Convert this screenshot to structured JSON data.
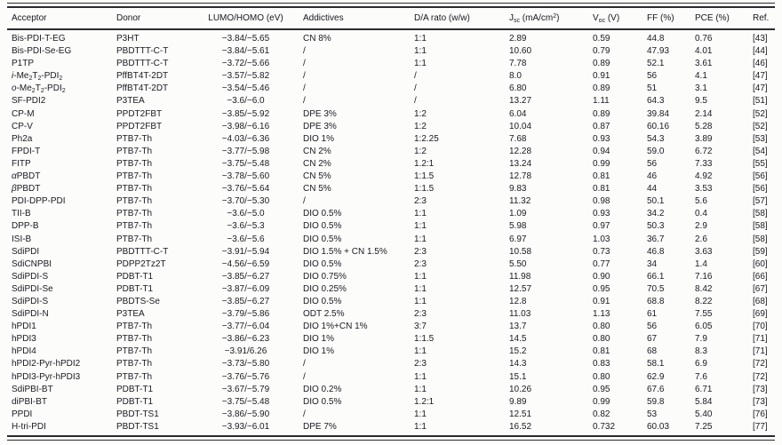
{
  "table": {
    "header": [
      "Acceptor",
      "Donor",
      "LUMO/HOMO (eV)",
      "Addictives",
      "D/A rato (w/w)",
      "J~sc~ (mA/cm^2^)",
      "V~oc~ (V)",
      "FF (%)",
      "PCE (%)",
      "Ref."
    ],
    "rows": [
      [
        "Bis-PDI-T-EG",
        "P3HT",
        "−3.84/−5.65",
        "CN 8%",
        "1:1",
        "2.89",
        "0.59",
        "44.8",
        "0.76",
        "[43]"
      ],
      [
        "Bis-PDI-Se-EG",
        "PBDTTT-C-T",
        "−3.84/−5.61",
        "/",
        "1:1",
        "10.60",
        "0.79",
        "47.93",
        "4.01",
        "[44]"
      ],
      [
        "P1TP",
        "PBDTTT-C-T",
        "−3.72/−5.66",
        "/",
        "1:1",
        "7.78",
        "0.89",
        "52.1",
        "3.61",
        "[46]"
      ],
      [
        "*i*-Me~2~T~2~-PDI~2~",
        "PffBT4T-2DT",
        "−3.57/−5.82",
        "/",
        "/",
        "8.0",
        "0.91",
        "56",
        "4.1",
        "[47]"
      ],
      [
        "*o*-Me~2~T~2~-PDI~2~",
        "PffBT4T-2DT",
        "−3.54/−5.46",
        "/",
        "/",
        "6.80",
        "0.89",
        "51",
        "3.1",
        "[47]"
      ],
      [
        "SF-PDI2",
        "P3TEA",
        "−3.6/−6.0",
        "/",
        "/",
        "13.27",
        "1.11",
        "64.3",
        "9.5",
        "[51]"
      ],
      [
        "CP-M",
        "PPDT2FBT",
        "−3.85/−5.92",
        "DPE 3%",
        "1:2",
        "6.04",
        "0.89",
        "39.84",
        "2.14",
        "[52]"
      ],
      [
        "CP-V",
        "PPDT2FBT",
        "−3.98/−6.16",
        "DPE 3%",
        "1:2",
        "10.04",
        "0.87",
        "60.16",
        "5.28",
        "[52]"
      ],
      [
        "Ph2a",
        "PTB7-Th",
        "−4.03/−6.36",
        "DIO 1%",
        "1:2.25",
        "7.68",
        "0.93",
        "54.3",
        "3.89",
        "[53]"
      ],
      [
        "FPDI-T",
        "PTB7-Th",
        "−3.77/−5.98",
        "CN 2%",
        "1:2",
        "12.28",
        "0.94",
        "59.0",
        "6.72",
        "[54]"
      ],
      [
        "FITP",
        "PTB7-Th",
        "−3.75/−5.48",
        "CN 2%",
        "1.2:1",
        "13.24",
        "0.99",
        "56",
        "7.33",
        "[55]"
      ],
      [
        "*α*PBDT",
        "PTB7-Th",
        "−3.78/−5.60",
        "CN 5%",
        "1:1.5",
        "12.78",
        "0.81",
        "46",
        "4.92",
        "[56]"
      ],
      [
        "*β*PBDT",
        "PTB7-Th",
        "−3.76/−5.64",
        "CN 5%",
        "1:1.5",
        "9.83",
        "0.81",
        "44",
        "3.53",
        "[56]"
      ],
      [
        "PDI-DPP-PDI",
        "PTB7-Th",
        "−3.70/−5.30",
        "/",
        "2:3",
        "11.32",
        "0.98",
        "50.1",
        "5.6",
        "[57]"
      ],
      [
        "TII-B",
        "PTB7-Th",
        "−3.6/−5.0",
        "DIO 0.5%",
        "1:1",
        "1.09",
        "0.93",
        "34.2",
        "0.4",
        "[58]"
      ],
      [
        "DPP-B",
        "PTB7-Th",
        "−3.6/−5.3",
        "DIO 0.5%",
        "1:1",
        "5.98",
        "0.97",
        "50.3",
        "2.9",
        "[58]"
      ],
      [
        "ISI-B",
        "PTB7-Th",
        "−3.6/−5.6",
        "DIO 0.5%",
        "1:1",
        "6.97",
        "1.03",
        "36.7",
        "2.6",
        "[58]"
      ],
      [
        "SdiPDI",
        "PBDTTT-C-T",
        "−3.91/−5.94",
        "DIO 1.5% + CN 1.5%",
        "2:3",
        "10.58",
        "0.73",
        "46.8",
        "3.63",
        "[59]"
      ],
      [
        "SdiCNPBI",
        "PDPP2Tz2T",
        "−4.56/−6.59",
        "DIO 0.5%",
        "2:3",
        "5.50",
        "0.77",
        "34",
        "1.4",
        "[60]"
      ],
      [
        "SdiPDI-S",
        "PDBT-T1",
        "−3.85/−6.27",
        "DIO 0.75%",
        "1:1",
        "11.98",
        "0.90",
        "66.1",
        "7.16",
        "[66]"
      ],
      [
        "SdiPDI-Se",
        "PDBT-T1",
        "−3.87/−6.09",
        "DIO 0.25%",
        "1:1",
        "12.57",
        "0.95",
        "70.5",
        "8.42",
        "[67]"
      ],
      [
        "SdiPDI-S",
        "PBDTS-Se",
        "−3.85/−6.27",
        "DIO 0.5%",
        "1:1",
        "12.8",
        "0.91",
        "68.8",
        "8.22",
        "[68]"
      ],
      [
        "SdiPDI-N",
        "P3TEA",
        "−3.79/−5.86",
        "ODT 2.5%",
        "2:3",
        "11.03",
        "1.13",
        "61",
        "7.55",
        "[69]"
      ],
      [
        "hPDI1",
        "PTB7-Th",
        "−3.77/−6.04",
        "DIO 1%+CN 1%",
        "3:7",
        "13.7",
        "0.80",
        "56",
        "6.05",
        "[70]"
      ],
      [
        "hPDI3",
        "PTB7-Th",
        "−3.86/−6.23",
        "DIO 1%",
        "1:1.5",
        "14.5",
        "0.80",
        "67",
        "7.9",
        "[71]"
      ],
      [
        "hPDI4",
        "PTB7-Th",
        "−3.91/6.26",
        "DIO 1%",
        "1:1",
        "15.2",
        "0.81",
        "68",
        "8.3",
        "[71]"
      ],
      [
        "hPDI2-Pyr-hPDI2",
        "PTB7-Th",
        "−3.73/−5.80",
        "/",
        "2:3",
        "14.3",
        "0.83",
        "58.1",
        "6.9",
        "[72]"
      ],
      [
        "hPDI3-Pyr-hPDI3",
        "PTB7-Th",
        "−3.76/−5.76",
        "/",
        "1:1",
        "15.1",
        "0.80",
        "62.9",
        "7.6",
        "[72]"
      ],
      [
        "SdiPBI-BT",
        "PDBT-T1",
        "−3.67/−5.79",
        "DIO 0.2%",
        "1:1",
        "10.26",
        "0.95",
        "67.6",
        "6.71",
        "[73]"
      ],
      [
        "diPBI-BT",
        "PDBT-T1",
        "−3.75/−5.48",
        "DIO 0.5%",
        "1.2:1",
        "9.89",
        "0.99",
        "59.8",
        "5.84",
        "[73]"
      ],
      [
        "PPDI",
        "PBDT-TS1",
        "−3.86/−5.90",
        "/",
        "1:1",
        "12.51",
        "0.82",
        "53",
        "5.40",
        "[76]"
      ],
      [
        "H-tri-PDI",
        "PBDT-TS1",
        "−3.93/−6.01",
        "DPE 7%",
        "1:1",
        "16.52",
        "0.732",
        "60.03",
        "7.25",
        "[77]"
      ]
    ]
  }
}
